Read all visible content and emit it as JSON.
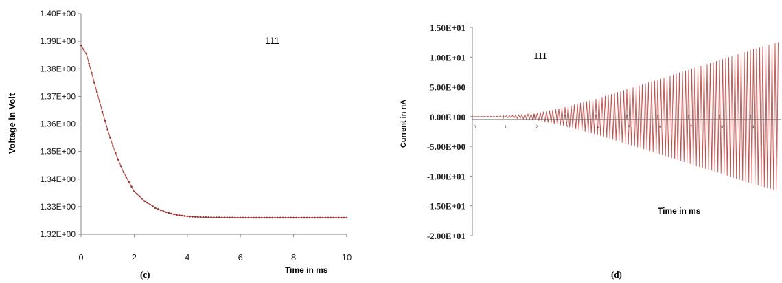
{
  "chart_data": [
    {
      "type": "line",
      "panel_label": "(c)",
      "annotation": "111",
      "xlabel": "Time in ms",
      "ylabel": "Voltage  in Volt",
      "xlim": [
        0,
        10
      ],
      "ylim": [
        1.32,
        1.4
      ],
      "x_ticks": [
        "0",
        "2",
        "4",
        "6",
        "8",
        "10"
      ],
      "y_ticks": [
        "1.32E+00",
        "1.33E+00",
        "1.34E+00",
        "1.35E+00",
        "1.36E+00",
        "1.37E+00",
        "1.38E+00",
        "1.39E+00",
        "1.40E+00"
      ],
      "grid": false,
      "legend": "none",
      "series": [
        {
          "color": "#c0504d",
          "marker": "dot",
          "x": [
            0,
            0.2,
            0.4,
            0.6,
            0.8,
            1.0,
            1.2,
            1.4,
            1.6,
            1.8,
            2.0,
            2.4,
            2.8,
            3.2,
            3.6,
            4.0,
            4.5,
            5.0,
            6.0,
            7.0,
            8.0,
            9.0,
            10.0
          ],
          "y": [
            1.3885,
            1.3855,
            1.3785,
            1.3715,
            1.3645,
            1.358,
            1.352,
            1.347,
            1.3425,
            1.339,
            1.3355,
            1.332,
            1.3295,
            1.328,
            1.327,
            1.3265,
            1.3262,
            1.3261,
            1.326,
            1.326,
            1.326,
            1.326,
            1.326
          ]
        }
      ]
    },
    {
      "type": "line",
      "panel_label": "(d)",
      "annotation": "111",
      "xlabel": "Time in ms",
      "ylabel": "Current in nA",
      "xlim": [
        0,
        10
      ],
      "ylim": [
        -20,
        15
      ],
      "x_ticks": [
        "0",
        "1",
        "2",
        "3",
        "4",
        "5",
        "6",
        "7",
        "8",
        "9"
      ],
      "y_ticks": [
        "-2.00E+01",
        "-1.50E+01",
        "-1.00E+01",
        "-5.00E+00",
        "0.00E+00",
        "5.00E+00",
        "1.00E+01",
        "1.50E+01"
      ],
      "grid": false,
      "legend": "none",
      "series": [
        {
          "color": "#c0504d",
          "oscillation_period_ms": 0.1,
          "envelope": {
            "t": [
              0,
              1,
              2,
              3,
              4,
              5,
              6,
              7,
              8,
              9,
              9.9
            ],
            "amplitude": [
              0,
              0.1,
              0.5,
              1.6,
              3.0,
              4.6,
              6.2,
              7.9,
              9.5,
              11.2,
              12.5
            ]
          }
        }
      ]
    }
  ]
}
